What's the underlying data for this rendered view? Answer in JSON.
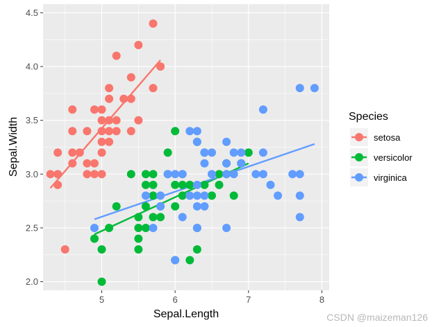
{
  "chart_data": {
    "type": "scatter",
    "title": "",
    "xlabel": "Sepal.Length",
    "ylabel": "Sepal.Width",
    "xlim": [
      4.2,
      8.1
    ],
    "ylim": [
      1.92,
      4.58
    ],
    "x_ticks": [
      5,
      6,
      7,
      8
    ],
    "x_tick_labels": [
      "5",
      "6",
      "7",
      "8"
    ],
    "y_ticks": [
      2.0,
      2.5,
      3.0,
      3.5,
      4.0,
      4.5
    ],
    "y_tick_labels": [
      "2.0",
      "2.5",
      "3.0",
      "3.5",
      "4.0",
      "4.5"
    ],
    "grid": true,
    "legend": {
      "title": "Species",
      "placement": "right"
    },
    "series": [
      {
        "name": "setosa",
        "color": "#F8766D",
        "points": [
          [
            4.3,
            3.0
          ],
          [
            4.4,
            2.9
          ],
          [
            4.4,
            3.0
          ],
          [
            4.4,
            3.2
          ],
          [
            4.5,
            2.3
          ],
          [
            4.6,
            3.1
          ],
          [
            4.6,
            3.2
          ],
          [
            4.6,
            3.4
          ],
          [
            4.6,
            3.6
          ],
          [
            4.7,
            3.2
          ],
          [
            4.8,
            3.0
          ],
          [
            4.8,
            3.1
          ],
          [
            4.8,
            3.4
          ],
          [
            4.9,
            3.0
          ],
          [
            4.9,
            3.1
          ],
          [
            4.9,
            3.6
          ],
          [
            5.0,
            3.0
          ],
          [
            5.0,
            3.2
          ],
          [
            5.0,
            3.3
          ],
          [
            5.0,
            3.4
          ],
          [
            5.0,
            3.5
          ],
          [
            5.0,
            3.6
          ],
          [
            5.1,
            3.3
          ],
          [
            5.1,
            3.4
          ],
          [
            5.1,
            3.5
          ],
          [
            5.1,
            3.7
          ],
          [
            5.1,
            3.8
          ],
          [
            5.2,
            3.4
          ],
          [
            5.2,
            3.5
          ],
          [
            5.2,
            4.1
          ],
          [
            5.3,
            3.7
          ],
          [
            5.4,
            3.4
          ],
          [
            5.4,
            3.7
          ],
          [
            5.4,
            3.9
          ],
          [
            5.5,
            3.5
          ],
          [
            5.5,
            4.2
          ],
          [
            5.7,
            3.8
          ],
          [
            5.7,
            4.4
          ],
          [
            5.8,
            4.0
          ]
        ],
        "fit": {
          "x": [
            4.3,
            5.8
          ],
          "y": [
            2.87,
            4.06
          ]
        }
      },
      {
        "name": "versicolor",
        "color": "#00BA38",
        "points": [
          [
            4.9,
            2.4
          ],
          [
            5.0,
            2.0
          ],
          [
            5.0,
            2.3
          ],
          [
            5.1,
            2.5
          ],
          [
            5.2,
            2.7
          ],
          [
            5.4,
            3.0
          ],
          [
            5.5,
            2.3
          ],
          [
            5.5,
            2.4
          ],
          [
            5.5,
            2.5
          ],
          [
            5.5,
            2.6
          ],
          [
            5.6,
            2.5
          ],
          [
            5.6,
            2.7
          ],
          [
            5.6,
            2.9
          ],
          [
            5.6,
            3.0
          ],
          [
            5.7,
            2.6
          ],
          [
            5.7,
            2.8
          ],
          [
            5.7,
            2.9
          ],
          [
            5.7,
            3.0
          ],
          [
            5.8,
            2.6
          ],
          [
            5.8,
            2.7
          ],
          [
            5.9,
            3.0
          ],
          [
            5.9,
            3.2
          ],
          [
            6.0,
            2.2
          ],
          [
            6.0,
            2.7
          ],
          [
            6.0,
            2.9
          ],
          [
            6.0,
            3.4
          ],
          [
            6.1,
            2.8
          ],
          [
            6.1,
            2.9
          ],
          [
            6.1,
            3.0
          ],
          [
            6.2,
            2.2
          ],
          [
            6.2,
            2.9
          ],
          [
            6.3,
            2.3
          ],
          [
            6.3,
            2.5
          ],
          [
            6.3,
            3.3
          ],
          [
            6.4,
            2.9
          ],
          [
            6.4,
            3.2
          ],
          [
            6.5,
            2.8
          ],
          [
            6.6,
            2.9
          ],
          [
            6.6,
            3.0
          ],
          [
            6.7,
            3.0
          ],
          [
            6.7,
            3.1
          ],
          [
            6.8,
            2.8
          ],
          [
            6.9,
            3.1
          ],
          [
            7.0,
            3.2
          ]
        ],
        "fit": {
          "x": [
            4.9,
            7.0
          ],
          "y": [
            2.44,
            3.1
          ]
        }
      },
      {
        "name": "virginica",
        "color": "#619CFF",
        "points": [
          [
            4.9,
            2.5
          ],
          [
            5.6,
            2.8
          ],
          [
            5.7,
            2.5
          ],
          [
            5.8,
            2.7
          ],
          [
            5.8,
            2.8
          ],
          [
            5.9,
            3.0
          ],
          [
            6.0,
            2.2
          ],
          [
            6.0,
            3.0
          ],
          [
            6.1,
            2.6
          ],
          [
            6.1,
            3.0
          ],
          [
            6.2,
            2.8
          ],
          [
            6.2,
            3.4
          ],
          [
            6.3,
            2.5
          ],
          [
            6.3,
            2.7
          ],
          [
            6.3,
            2.8
          ],
          [
            6.3,
            2.9
          ],
          [
            6.3,
            3.3
          ],
          [
            6.3,
            3.4
          ],
          [
            6.4,
            2.7
          ],
          [
            6.4,
            2.8
          ],
          [
            6.4,
            3.1
          ],
          [
            6.4,
            3.2
          ],
          [
            6.5,
            3.0
          ],
          [
            6.5,
            3.2
          ],
          [
            6.7,
            2.5
          ],
          [
            6.7,
            3.0
          ],
          [
            6.7,
            3.1
          ],
          [
            6.7,
            3.3
          ],
          [
            6.8,
            3.0
          ],
          [
            6.8,
            3.2
          ],
          [
            6.9,
            3.1
          ],
          [
            6.9,
            3.2
          ],
          [
            7.1,
            3.0
          ],
          [
            7.2,
            3.0
          ],
          [
            7.2,
            3.2
          ],
          [
            7.2,
            3.6
          ],
          [
            7.3,
            2.9
          ],
          [
            7.4,
            2.8
          ],
          [
            7.6,
            3.0
          ],
          [
            7.7,
            2.6
          ],
          [
            7.7,
            2.8
          ],
          [
            7.7,
            3.0
          ],
          [
            7.7,
            3.8
          ],
          [
            7.9,
            3.8
          ]
        ],
        "fit": {
          "x": [
            4.9,
            7.9
          ],
          "y": [
            2.58,
            3.28
          ]
        }
      }
    ]
  },
  "watermark": "CSDN @maizeman126"
}
